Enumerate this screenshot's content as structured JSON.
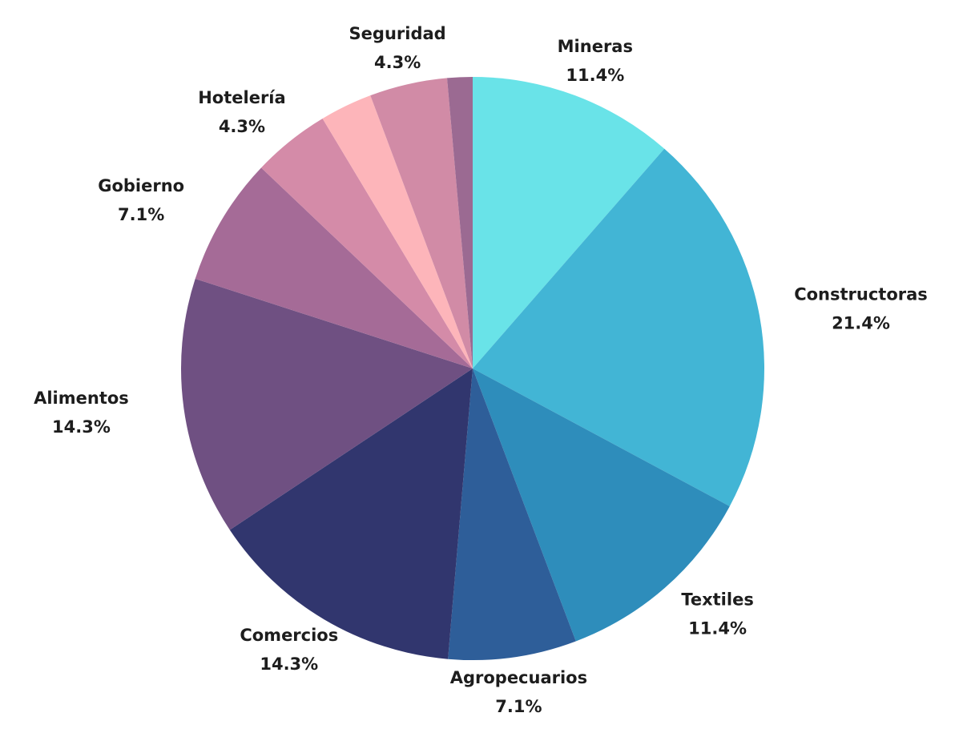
{
  "chart_data": {
    "type": "pie",
    "categories": [
      "Mineras",
      "Constructoras",
      "Textiles",
      "Agropecuarios",
      "Comercios",
      "Alimentos",
      "Gobierno",
      "Hotelería",
      null,
      "Seguridad",
      null
    ],
    "values": [
      11.4,
      21.4,
      11.4,
      7.1,
      14.3,
      14.3,
      7.1,
      4.3,
      2.9,
      4.3,
      1.4
    ],
    "value_labels": [
      "11.4%",
      "21.4%",
      "11.4%",
      "7.1%",
      "14.3%",
      "14.3%",
      "7.1%",
      "4.3%",
      null,
      "4.3%",
      null
    ],
    "colors": [
      "#69e3e8",
      "#42b5d5",
      "#2e8dbb",
      "#2e5e99",
      "#31366e",
      "#6f5082",
      "#a56b97",
      "#d48ba8",
      "#fdb5ba",
      "#d18ba6",
      "#9b6a92"
    ]
  }
}
